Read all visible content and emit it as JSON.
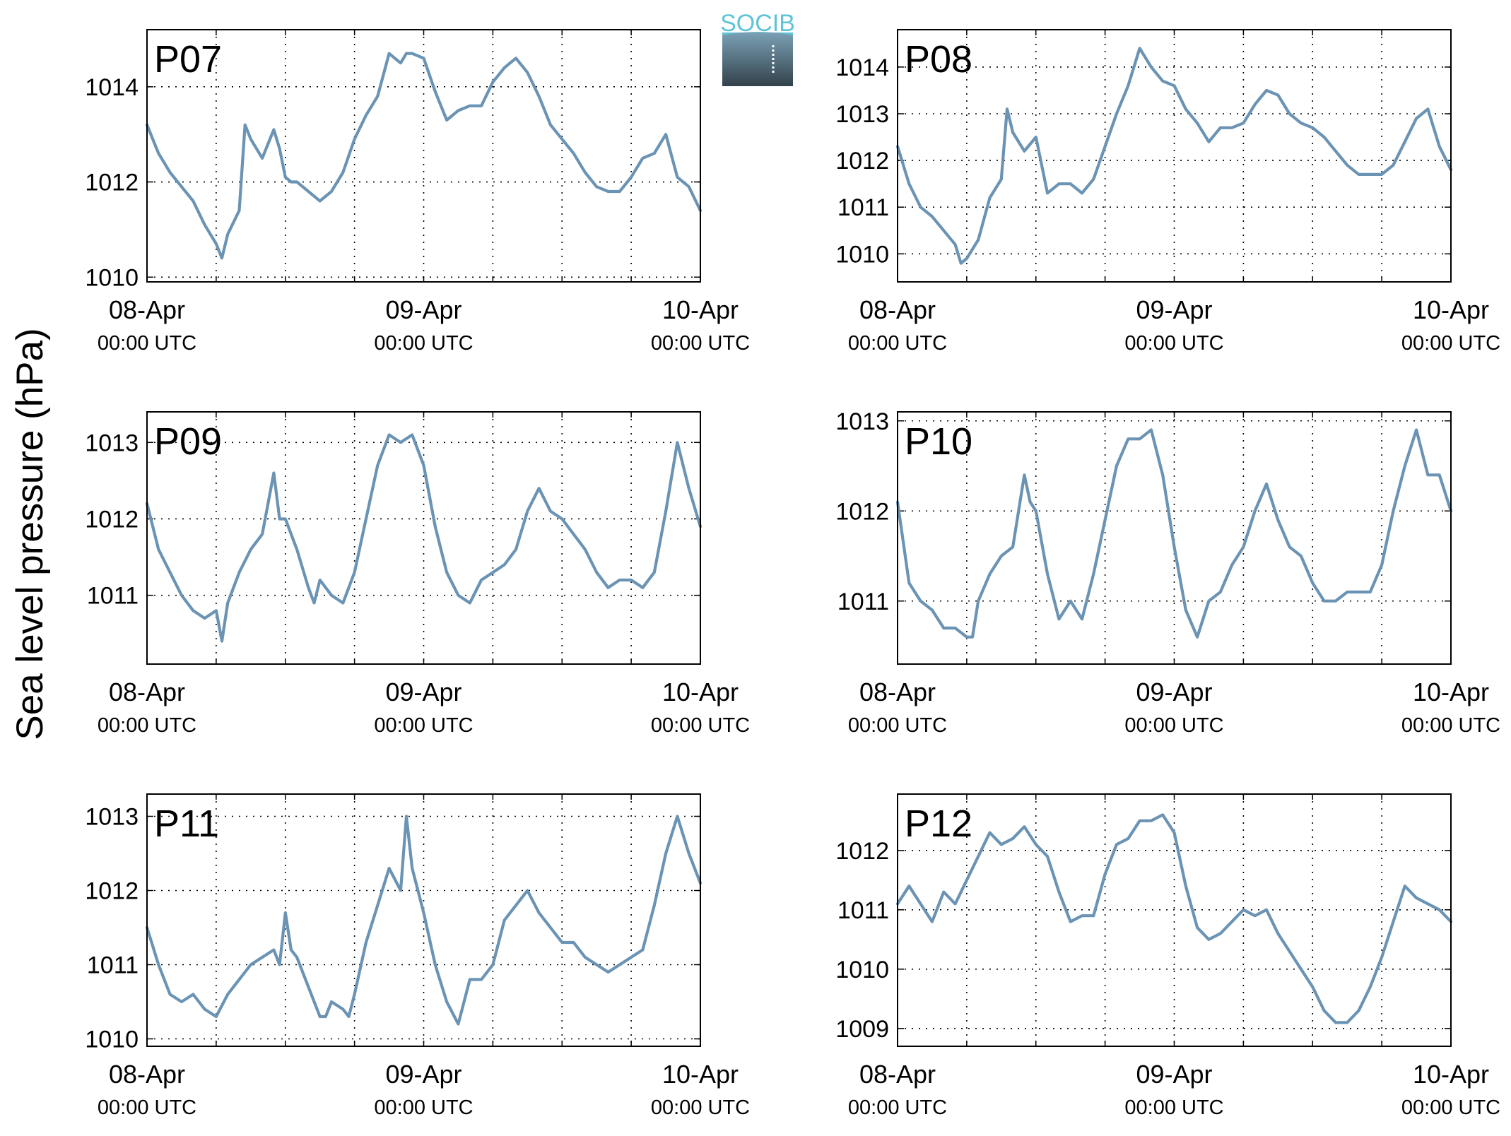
{
  "figure": {
    "ylabel": "Sea level pressure (hPa)",
    "logo_text": "SOCIB",
    "line_color": "#6b93b4",
    "label_color": "#ff0000"
  },
  "chart_data": [
    {
      "type": "line",
      "title": "P07",
      "xticks": [
        {
          "day": "08-Apr",
          "time": "00:00 UTC"
        },
        {
          "day": "09-Apr",
          "time": "00:00 UTC"
        },
        {
          "day": "10-Apr",
          "time": "00:00 UTC"
        }
      ],
      "x_unit": "hours since 08-Apr 00:00 UTC",
      "xlim": [
        0,
        48
      ],
      "ylim": [
        1009.9,
        1015.2
      ],
      "yticks": [
        1010,
        1012,
        1014
      ],
      "grid": true,
      "series": [
        {
          "x": [
            0,
            1,
            2,
            3,
            4,
            5,
            6,
            6.5,
            7,
            8,
            8.5,
            9,
            10,
            11,
            11.5,
            12,
            12.5,
            13,
            14,
            15,
            16,
            17,
            18,
            19,
            20,
            21,
            22,
            22.5,
            23,
            24,
            25,
            26,
            27,
            28,
            29,
            30,
            31,
            32,
            33,
            34,
            35,
            36,
            37,
            38,
            39,
            40,
            41,
            42,
            43,
            44,
            45,
            46,
            47,
            48
          ],
          "y": [
            1013.2,
            1012.6,
            1012.2,
            1011.9,
            1011.6,
            1011.1,
            1010.7,
            1010.4,
            1010.9,
            1011.4,
            1013.2,
            1012.9,
            1012.5,
            1013.1,
            1012.7,
            1012.1,
            1012.0,
            1012.0,
            1011.8,
            1011.6,
            1011.8,
            1012.2,
            1012.9,
            1013.4,
            1013.8,
            1014.7,
            1014.5,
            1014.7,
            1014.7,
            1014.6,
            1013.9,
            1013.3,
            1013.5,
            1013.6,
            1013.6,
            1014.1,
            1014.4,
            1014.6,
            1014.3,
            1013.8,
            1013.2,
            1012.9,
            1012.6,
            1012.2,
            1011.9,
            1011.8,
            1011.8,
            1012.1,
            1012.5,
            1012.6,
            1013.0,
            1012.1,
            1011.9,
            1011.4
          ]
        }
      ]
    },
    {
      "type": "line",
      "title": "P08",
      "xticks": [
        {
          "day": "08-Apr",
          "time": "00:00 UTC"
        },
        {
          "day": "09-Apr",
          "time": "00:00 UTC"
        },
        {
          "day": "10-Apr",
          "time": "00:00 UTC"
        }
      ],
      "x_unit": "hours since 08-Apr 00:00 UTC",
      "xlim": [
        0,
        48
      ],
      "ylim": [
        1009.4,
        1014.8
      ],
      "yticks": [
        1010,
        1011,
        1012,
        1013,
        1014
      ],
      "grid": true,
      "series": [
        {
          "x": [
            0,
            1,
            2,
            3,
            4,
            5,
            5.5,
            6,
            7,
            8,
            9,
            9.5,
            10,
            11,
            12,
            13,
            14,
            15,
            16,
            17,
            18,
            19,
            20,
            21,
            22,
            23,
            24,
            25,
            26,
            27,
            28,
            29,
            30,
            31,
            32,
            33,
            34,
            35,
            36,
            37,
            38,
            39,
            40,
            41,
            42,
            43,
            44,
            45,
            46,
            47,
            48
          ],
          "y": [
            1012.3,
            1011.5,
            1011.0,
            1010.8,
            1010.5,
            1010.2,
            1009.8,
            1009.9,
            1010.3,
            1011.2,
            1011.6,
            1013.1,
            1012.6,
            1012.2,
            1012.5,
            1011.3,
            1011.5,
            1011.5,
            1011.3,
            1011.6,
            1012.3,
            1013.0,
            1013.6,
            1014.4,
            1014.0,
            1013.7,
            1013.6,
            1013.1,
            1012.8,
            1012.4,
            1012.7,
            1012.7,
            1012.8,
            1013.2,
            1013.5,
            1013.4,
            1013.0,
            1012.8,
            1012.7,
            1012.5,
            1012.2,
            1011.9,
            1011.7,
            1011.7,
            1011.7,
            1011.9,
            1012.4,
            1012.9,
            1013.1,
            1012.3,
            1011.8
          ]
        }
      ]
    },
    {
      "type": "line",
      "title": "P09",
      "xticks": [
        {
          "day": "08-Apr",
          "time": "00:00 UTC"
        },
        {
          "day": "09-Apr",
          "time": "00:00 UTC"
        },
        {
          "day": "10-Apr",
          "time": "00:00 UTC"
        }
      ],
      "x_unit": "hours since 08-Apr 00:00 UTC",
      "xlim": [
        0,
        48
      ],
      "ylim": [
        1010.1,
        1013.4
      ],
      "yticks": [
        1011,
        1012,
        1013
      ],
      "grid": true,
      "series": [
        {
          "x": [
            0,
            1,
            2,
            3,
            4,
            5,
            6,
            6.5,
            7,
            8,
            9,
            10,
            11,
            11.5,
            12,
            13,
            14,
            14.5,
            15,
            16,
            17,
            18,
            19,
            20,
            21,
            22,
            23,
            24,
            25,
            26,
            27,
            28,
            29,
            30,
            31,
            32,
            33,
            34,
            35,
            36,
            37,
            38,
            39,
            40,
            41,
            42,
            43,
            44,
            45,
            46,
            47,
            48
          ],
          "y": [
            1012.2,
            1011.6,
            1011.3,
            1011.0,
            1010.8,
            1010.7,
            1010.8,
            1010.4,
            1010.9,
            1011.3,
            1011.6,
            1011.8,
            1012.6,
            1012.0,
            1012.0,
            1011.6,
            1011.1,
            1010.9,
            1011.2,
            1011.0,
            1010.9,
            1011.3,
            1012.0,
            1012.7,
            1013.1,
            1013.0,
            1013.1,
            1012.7,
            1011.9,
            1011.3,
            1011.0,
            1010.9,
            1011.2,
            1011.3,
            1011.4,
            1011.6,
            1012.1,
            1012.4,
            1012.1,
            1012.0,
            1011.8,
            1011.6,
            1011.3,
            1011.1,
            1011.2,
            1011.2,
            1011.1,
            1011.3,
            1012.1,
            1013.0,
            1012.4,
            1011.9
          ]
        }
      ]
    },
    {
      "type": "line",
      "title": "P10",
      "xticks": [
        {
          "day": "08-Apr",
          "time": "00:00 UTC"
        },
        {
          "day": "09-Apr",
          "time": "00:00 UTC"
        },
        {
          "day": "10-Apr",
          "time": "00:00 UTC"
        }
      ],
      "x_unit": "hours since 08-Apr 00:00 UTC",
      "xlim": [
        0,
        48
      ],
      "ylim": [
        1010.3,
        1013.1
      ],
      "yticks": [
        1011,
        1012,
        1013
      ],
      "grid": true,
      "series": [
        {
          "x": [
            0,
            1,
            2,
            3,
            4,
            5,
            6,
            6.5,
            7,
            8,
            9,
            10,
            11,
            11.5,
            12,
            13,
            14,
            15,
            16,
            17,
            18,
            19,
            20,
            21,
            22,
            23,
            24,
            25,
            26,
            27,
            28,
            29,
            30,
            31,
            32,
            33,
            34,
            35,
            36,
            37,
            38,
            39,
            40,
            41,
            42,
            43,
            44,
            45,
            46,
            47,
            48
          ],
          "y": [
            1012.1,
            1011.2,
            1011.0,
            1010.9,
            1010.7,
            1010.7,
            1010.6,
            1010.6,
            1011.0,
            1011.3,
            1011.5,
            1011.6,
            1012.4,
            1012.1,
            1012.0,
            1011.3,
            1010.8,
            1011.0,
            1010.8,
            1011.3,
            1011.9,
            1012.5,
            1012.8,
            1012.8,
            1012.9,
            1012.4,
            1011.6,
            1010.9,
            1010.6,
            1011.0,
            1011.1,
            1011.4,
            1011.6,
            1012.0,
            1012.3,
            1011.9,
            1011.6,
            1011.5,
            1011.2,
            1011.0,
            1011.0,
            1011.1,
            1011.1,
            1011.1,
            1011.4,
            1012.0,
            1012.5,
            1012.9,
            1012.4,
            1012.4,
            1012.0
          ]
        }
      ]
    },
    {
      "type": "line",
      "title": "P11",
      "xticks": [
        {
          "day": "08-Apr",
          "time": "00:00 UTC"
        },
        {
          "day": "09-Apr",
          "time": "00:00 UTC"
        },
        {
          "day": "10-Apr",
          "time": "00:00 UTC"
        }
      ],
      "x_unit": "hours since 08-Apr 00:00 UTC",
      "xlim": [
        0,
        48
      ],
      "ylim": [
        1009.9,
        1013.3
      ],
      "yticks": [
        1010,
        1011,
        1012,
        1013
      ],
      "grid": true,
      "series": [
        {
          "x": [
            0,
            1,
            2,
            3,
            4,
            5,
            6,
            7,
            8,
            9,
            10,
            11,
            11.5,
            12,
            12.5,
            13,
            14,
            15,
            15.5,
            16,
            17,
            17.5,
            18,
            19,
            20,
            21,
            22,
            22.5,
            23,
            24,
            25,
            26,
            27,
            28,
            29,
            30,
            31,
            32,
            33,
            34,
            35,
            36,
            37,
            38,
            39,
            40,
            41,
            42,
            43,
            44,
            45,
            46,
            47,
            48
          ],
          "y": [
            1011.5,
            1011.0,
            1010.6,
            1010.5,
            1010.6,
            1010.4,
            1010.3,
            1010.6,
            1010.8,
            1011.0,
            1011.1,
            1011.2,
            1011.0,
            1011.7,
            1011.2,
            1011.1,
            1010.7,
            1010.3,
            1010.3,
            1010.5,
            1010.4,
            1010.3,
            1010.6,
            1011.3,
            1011.8,
            1012.3,
            1012.0,
            1013.0,
            1012.3,
            1011.7,
            1011.0,
            1010.5,
            1010.2,
            1010.8,
            1010.8,
            1011.0,
            1011.6,
            1011.8,
            1012.0,
            1011.7,
            1011.5,
            1011.3,
            1011.3,
            1011.1,
            1011.0,
            1010.9,
            1011.0,
            1011.1,
            1011.2,
            1011.8,
            1012.5,
            1013.0,
            1012.5,
            1012.1
          ]
        }
      ]
    },
    {
      "type": "line",
      "title": "P12",
      "xticks": [
        {
          "day": "08-Apr",
          "time": "00:00 UTC"
        },
        {
          "day": "09-Apr",
          "time": "00:00 UTC"
        },
        {
          "day": "10-Apr",
          "time": "00:00 UTC"
        }
      ],
      "x_unit": "hours since 08-Apr 00:00 UTC",
      "xlim": [
        0,
        48
      ],
      "ylim": [
        1008.7,
        1012.95
      ],
      "yticks": [
        1009,
        1010,
        1011,
        1012
      ],
      "grid": true,
      "series": [
        {
          "x": [
            0,
            1,
            2,
            3,
            4,
            5,
            6,
            7,
            7.5,
            8,
            9,
            10,
            11,
            12,
            13,
            14,
            15,
            16,
            17,
            18,
            19,
            20,
            21,
            22,
            23,
            24,
            25,
            26,
            27,
            28,
            29,
            30,
            31,
            32,
            33,
            34,
            35,
            36,
            37,
            38,
            39,
            40,
            41,
            42,
            43,
            44,
            45,
            46,
            47,
            48
          ],
          "y": [
            1011.1,
            1011.4,
            1011.1,
            1010.8,
            1011.3,
            1011.1,
            1011.5,
            1011.9,
            1012.1,
            1012.3,
            1012.1,
            1012.2,
            1012.4,
            1012.1,
            1011.9,
            1011.3,
            1010.8,
            1010.9,
            1010.9,
            1011.6,
            1012.1,
            1012.2,
            1012.5,
            1012.5,
            1012.6,
            1012.3,
            1011.4,
            1010.7,
            1010.5,
            1010.6,
            1010.8,
            1011.0,
            1010.9,
            1011.0,
            1010.6,
            1010.3,
            1010.0,
            1009.7,
            1009.3,
            1009.1,
            1009.1,
            1009.3,
            1009.7,
            1010.2,
            1010.8,
            1011.4,
            1011.2,
            1011.1,
            1011.0,
            1010.8
          ]
        }
      ]
    }
  ]
}
